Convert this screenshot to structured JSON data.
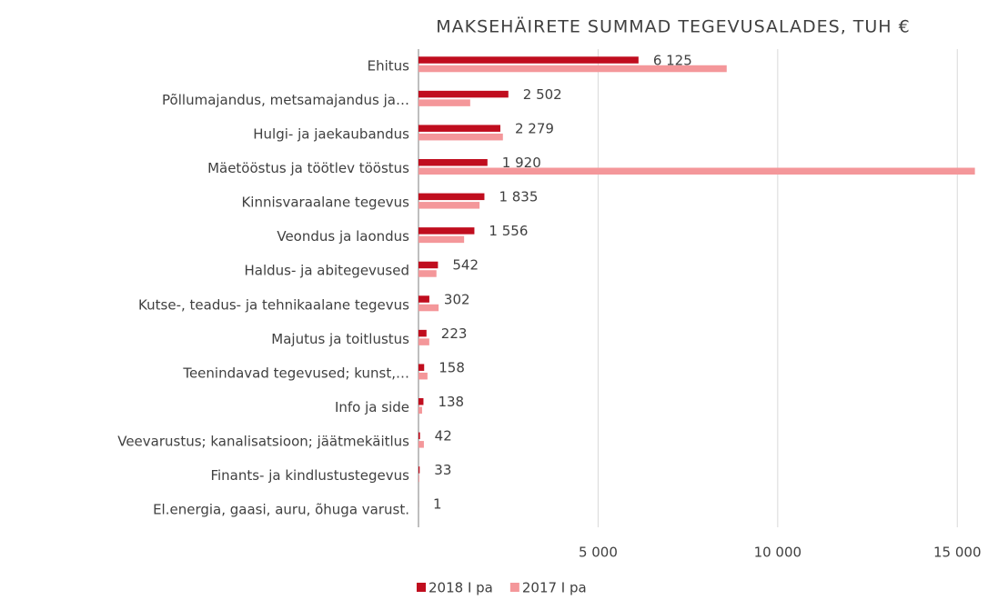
{
  "chart_data": {
    "type": "hbar",
    "title": "MAKSEHÄIRETE SUMMAD TEGEVUSALADES, TUH €",
    "categories": [
      "Ehitus",
      "Põllumajandus, metsamajandus ja…",
      "Hulgi- ja jaekaubandus",
      "Mäetööstus ja töötlev tööstus",
      "Kinnisvaraalane tegevus",
      "Veondus ja laondus",
      "Haldus- ja abitegevused",
      "Kutse-, teadus- ja tehnikaalane tegevus",
      "Majutus ja toitlustus",
      "Teenindavad tegevused; kunst,…",
      "Info ja side",
      "Veevarustus; kanalisatsioon; jäätmekäitlus",
      "Finants- ja kindlustustegevus",
      "El.energia, gaasi, auru, õhuga varust."
    ],
    "series": [
      {
        "name": "2018 I pa",
        "color": "#c00d1e",
        "values": [
          6125,
          2502,
          2279,
          1920,
          1835,
          1556,
          542,
          302,
          223,
          158,
          138,
          42,
          33,
          1
        ],
        "value_labels": [
          "6 125",
          "2 502",
          "2 279",
          "1 920",
          "1 835",
          "1 556",
          "542",
          "302",
          "223",
          "158",
          "138",
          "42",
          "33",
          "1"
        ]
      },
      {
        "name": "2017 I pa",
        "color": "#f4979a",
        "values": [
          8580,
          1440,
          2350,
          15490,
          1700,
          1270,
          500,
          560,
          300,
          250,
          100,
          150,
          20,
          0
        ]
      }
    ],
    "xlim": [
      0,
      15500
    ],
    "xticks": [
      {
        "value": 5000,
        "label": "5 000"
      },
      {
        "value": 10000,
        "label": "10 000"
      },
      {
        "value": 15000,
        "label": "15 000"
      }
    ],
    "grid": true,
    "legend": "bottom"
  }
}
